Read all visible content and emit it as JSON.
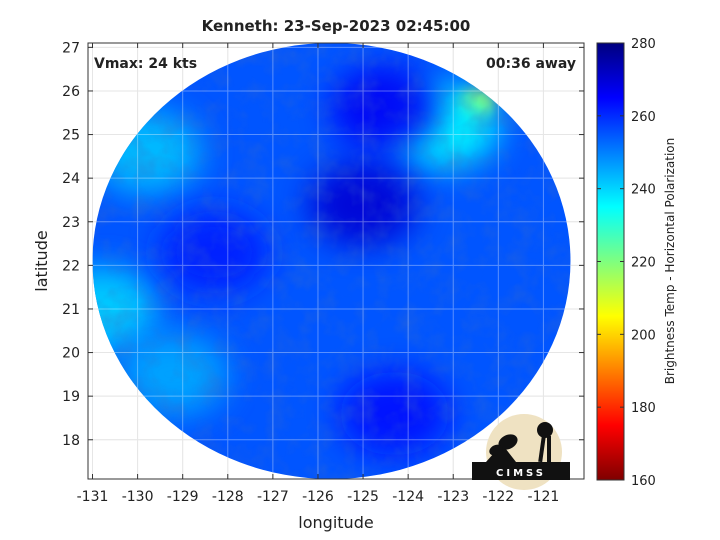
{
  "title": "Kenneth: 23-Sep-2023 02:45:00",
  "vmax_label": "Vmax: 24 kts",
  "time_label": "00:36 away",
  "logo_text": "CIMSS",
  "colors": {
    "background": "#ffffff",
    "frame": "#333333",
    "grid": "#d9d9d9",
    "swath_base": "#2f7fe0"
  },
  "chart_data": {
    "type": "heatmap",
    "xlabel": "longitude",
    "ylabel": "latitude",
    "xlim": [
      -131.1,
      -120.1
    ],
    "ylim": [
      17.1,
      27.1
    ],
    "x_ticks": [
      -131,
      -130,
      -129,
      -128,
      -127,
      -126,
      -125,
      -124,
      -123,
      -122,
      -121
    ],
    "y_ticks": [
      18,
      19,
      20,
      21,
      22,
      23,
      24,
      25,
      26,
      27
    ],
    "grid": true,
    "colorbar": {
      "label": "Brightness Temp - Horizontal Polarization",
      "range": [
        160,
        280
      ],
      "ticks": [
        160,
        180,
        200,
        220,
        240,
        260,
        280
      ],
      "colormap": "jet"
    },
    "swath": {
      "shape": "circle",
      "center_lon": -125.7,
      "center_lat": 22.1,
      "radius_deg_lon": 5.3,
      "radius_deg_lat": 5.0,
      "typical_value": 255
    },
    "features": [
      {
        "name": "warm region west edge",
        "lon": -130.8,
        "lat": 21.0,
        "value": 240
      },
      {
        "name": "warm region northwest",
        "lon": -129.8,
        "lat": 24.6,
        "value": 242
      },
      {
        "name": "warm region southwest",
        "lon": -129.2,
        "lat": 19.5,
        "value": 245
      },
      {
        "name": "warm patch northeast",
        "lon": -122.5,
        "lat": 25.7,
        "value": 205
      },
      {
        "name": "warm patch northeast fringe",
        "lon": -123.2,
        "lat": 25.2,
        "value": 235
      },
      {
        "name": "cold core north-center",
        "lon": -125.0,
        "lat": 23.4,
        "value": 270
      },
      {
        "name": "cold band north",
        "lon": -124.5,
        "lat": 25.6,
        "value": 266
      },
      {
        "name": "cold band south",
        "lon": -124.3,
        "lat": 18.6,
        "value": 264
      },
      {
        "name": "cold patch west-center",
        "lon": -128.3,
        "lat": 22.3,
        "value": 262
      }
    ]
  }
}
